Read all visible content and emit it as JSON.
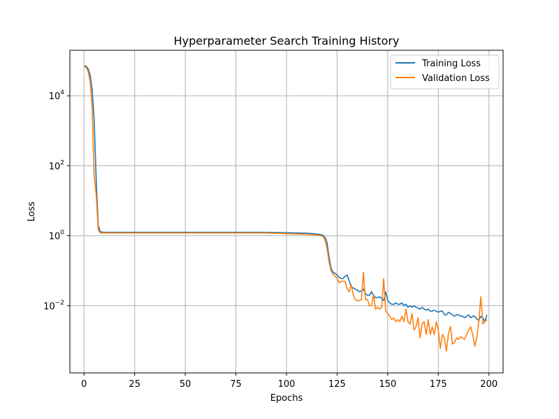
{
  "chart_data": {
    "type": "line",
    "title": "Hyperparameter Search Training History",
    "xlabel": "Epochs",
    "ylabel": "Loss",
    "yscale": "log",
    "xlim": [
      -7,
      207
    ],
    "ylim": [
      0.00012,
      200000
    ],
    "xticks": [
      0,
      25,
      50,
      75,
      100,
      125,
      150,
      175,
      200
    ],
    "yticks": [
      {
        "value": 0.01,
        "base": "10",
        "exp": "−2"
      },
      {
        "value": 1,
        "base": "10",
        "exp": "0"
      },
      {
        "value": 100,
        "base": "10",
        "exp": "2"
      },
      {
        "value": 10000,
        "base": "10",
        "exp": "4"
      }
    ],
    "grid": true,
    "legend_position": "top-right",
    "series": [
      {
        "name": "Training Loss",
        "color": "#1f77b4",
        "points": [
          [
            0,
            72000
          ],
          [
            1,
            70000
          ],
          [
            2,
            60000
          ],
          [
            3,
            40000
          ],
          [
            4,
            15000
          ],
          [
            5,
            2000
          ],
          [
            6,
            40
          ],
          [
            7,
            2
          ],
          [
            8,
            1.3
          ],
          [
            10,
            1.25
          ],
          [
            20,
            1.25
          ],
          [
            30,
            1.25
          ],
          [
            40,
            1.25
          ],
          [
            50,
            1.25
          ],
          [
            60,
            1.25
          ],
          [
            70,
            1.25
          ],
          [
            80,
            1.25
          ],
          [
            90,
            1.25
          ],
          [
            100,
            1.22
          ],
          [
            110,
            1.18
          ],
          [
            115,
            1.12
          ],
          [
            117,
            1.08
          ],
          [
            118,
            1.02
          ],
          [
            119,
            0.92
          ],
          [
            120,
            0.65
          ],
          [
            121,
            0.25
          ],
          [
            122,
            0.12
          ],
          [
            123,
            0.09
          ],
          [
            124,
            0.085
          ],
          [
            125,
            0.075
          ],
          [
            126,
            0.065
          ],
          [
            127,
            0.06
          ],
          [
            128,
            0.06
          ],
          [
            129,
            0.07
          ],
          [
            130,
            0.075
          ],
          [
            131,
            0.05
          ],
          [
            132,
            0.035
          ],
          [
            133,
            0.032
          ],
          [
            134,
            0.03
          ],
          [
            135,
            0.028
          ],
          [
            136,
            0.025
          ],
          [
            137,
            0.026
          ],
          [
            138,
            0.03
          ],
          [
            139,
            0.022
          ],
          [
            140,
            0.02
          ],
          [
            141,
            0.02
          ],
          [
            142,
            0.025
          ],
          [
            143,
            0.02
          ],
          [
            144,
            0.017
          ],
          [
            145,
            0.017
          ],
          [
            146,
            0.018
          ],
          [
            147,
            0.016
          ],
          [
            148,
            0.014
          ],
          [
            149,
            0.025
          ],
          [
            150,
            0.014
          ],
          [
            151,
            0.012
          ],
          [
            152,
            0.011
          ],
          [
            153,
            0.011
          ],
          [
            154,
            0.012
          ],
          [
            155,
            0.011
          ],
          [
            156,
            0.011
          ],
          [
            157,
            0.012
          ],
          [
            158,
            0.01
          ],
          [
            159,
            0.011
          ],
          [
            160,
            0.009
          ],
          [
            161,
            0.01
          ],
          [
            162,
            0.009
          ],
          [
            163,
            0.01
          ],
          [
            164,
            0.009
          ],
          [
            165,
            0.0085
          ],
          [
            166,
            0.008
          ],
          [
            167,
            0.009
          ],
          [
            168,
            0.008
          ],
          [
            169,
            0.0075
          ],
          [
            170,
            0.008
          ],
          [
            171,
            0.007
          ],
          [
            172,
            0.007
          ],
          [
            173,
            0.0075
          ],
          [
            174,
            0.007
          ],
          [
            175,
            0.0065
          ],
          [
            176,
            0.007
          ],
          [
            177,
            0.007
          ],
          [
            178,
            0.0055
          ],
          [
            179,
            0.0055
          ],
          [
            180,
            0.0065
          ],
          [
            181,
            0.006
          ],
          [
            182,
            0.0055
          ],
          [
            183,
            0.005
          ],
          [
            184,
            0.0055
          ],
          [
            185,
            0.0055
          ],
          [
            186,
            0.005
          ],
          [
            187,
            0.005
          ],
          [
            188,
            0.0045
          ],
          [
            189,
            0.005
          ],
          [
            190,
            0.0055
          ],
          [
            191,
            0.0045
          ],
          [
            192,
            0.005
          ],
          [
            193,
            0.005
          ],
          [
            194,
            0.0042
          ],
          [
            195,
            0.0038
          ],
          [
            196,
            0.005
          ],
          [
            197,
            0.0045
          ],
          [
            198,
            0.0035
          ],
          [
            199,
            0.0055
          ]
        ]
      },
      {
        "name": "Validation Loss",
        "color": "#ff7f0e",
        "points": [
          [
            0,
            70000
          ],
          [
            1,
            65000
          ],
          [
            2,
            50000
          ],
          [
            3,
            25000
          ],
          [
            4,
            5000
          ],
          [
            5,
            50
          ],
          [
            6,
            15
          ],
          [
            7,
            1.5
          ],
          [
            8,
            1.2
          ],
          [
            10,
            1.2
          ],
          [
            20,
            1.2
          ],
          [
            30,
            1.2
          ],
          [
            40,
            1.2
          ],
          [
            50,
            1.2
          ],
          [
            60,
            1.2
          ],
          [
            70,
            1.2
          ],
          [
            80,
            1.2
          ],
          [
            90,
            1.2
          ],
          [
            100,
            1.15
          ],
          [
            110,
            1.1
          ],
          [
            115,
            1.05
          ],
          [
            117,
            1.0
          ],
          [
            118,
            0.95
          ],
          [
            119,
            0.75
          ],
          [
            120,
            0.45
          ],
          [
            121,
            0.18
          ],
          [
            122,
            0.1
          ],
          [
            123,
            0.08
          ],
          [
            124,
            0.07
          ],
          [
            125,
            0.06
          ],
          [
            126,
            0.045
          ],
          [
            127,
            0.05
          ],
          [
            128,
            0.05
          ],
          [
            129,
            0.05
          ],
          [
            130,
            0.03
          ],
          [
            131,
            0.025
          ],
          [
            132,
            0.04
          ],
          [
            133,
            0.02
          ],
          [
            134,
            0.015
          ],
          [
            135,
            0.014
          ],
          [
            136,
            0.014
          ],
          [
            137,
            0.015
          ],
          [
            138,
            0.09
          ],
          [
            139,
            0.015
          ],
          [
            140,
            0.015
          ],
          [
            141,
            0.01
          ],
          [
            142,
            0.01
          ],
          [
            143,
            0.02
          ],
          [
            144,
            0.008
          ],
          [
            145,
            0.009
          ],
          [
            146,
            0.008
          ],
          [
            147,
            0.009
          ],
          [
            148,
            0.06
          ],
          [
            149,
            0.007
          ],
          [
            150,
            0.006
          ],
          [
            151,
            0.005
          ],
          [
            152,
            0.004
          ],
          [
            153,
            0.0045
          ],
          [
            154,
            0.0035
          ],
          [
            155,
            0.004
          ],
          [
            156,
            0.0035
          ],
          [
            157,
            0.005
          ],
          [
            158,
            0.0035
          ],
          [
            159,
            0.008
          ],
          [
            160,
            0.0035
          ],
          [
            161,
            0.003
          ],
          [
            162,
            0.006
          ],
          [
            163,
            0.002
          ],
          [
            164,
            0.0025
          ],
          [
            165,
            0.0045
          ],
          [
            166,
            0.0012
          ],
          [
            167,
            0.003
          ],
          [
            168,
            0.0035
          ],
          [
            169,
            0.0015
          ],
          [
            170,
            0.004
          ],
          [
            171,
            0.0015
          ],
          [
            172,
            0.0025
          ],
          [
            173,
            0.0015
          ],
          [
            174,
            0.0035
          ],
          [
            175,
            0.002
          ],
          [
            176,
            0.0006
          ],
          [
            177,
            0.0015
          ],
          [
            178,
            0.0012
          ],
          [
            179,
            0.0005
          ],
          [
            180,
            0.0016
          ],
          [
            181,
            0.0025
          ],
          [
            182,
            0.0008
          ],
          [
            183,
            0.0009
          ],
          [
            184,
            0.0012
          ],
          [
            185,
            0.0011
          ],
          [
            186,
            0.0013
          ],
          [
            187,
            0.0012
          ],
          [
            188,
            0.0011
          ],
          [
            189,
            0.0015
          ],
          [
            190,
            0.002
          ],
          [
            191,
            0.0025
          ],
          [
            192,
            0.0015
          ],
          [
            193,
            0.0007
          ],
          [
            194,
            0.0012
          ],
          [
            195,
            0.0035
          ],
          [
            196,
            0.018
          ],
          [
            197,
            0.003
          ],
          [
            198,
            0.0035
          ],
          [
            199,
            0.004
          ]
        ]
      }
    ]
  }
}
